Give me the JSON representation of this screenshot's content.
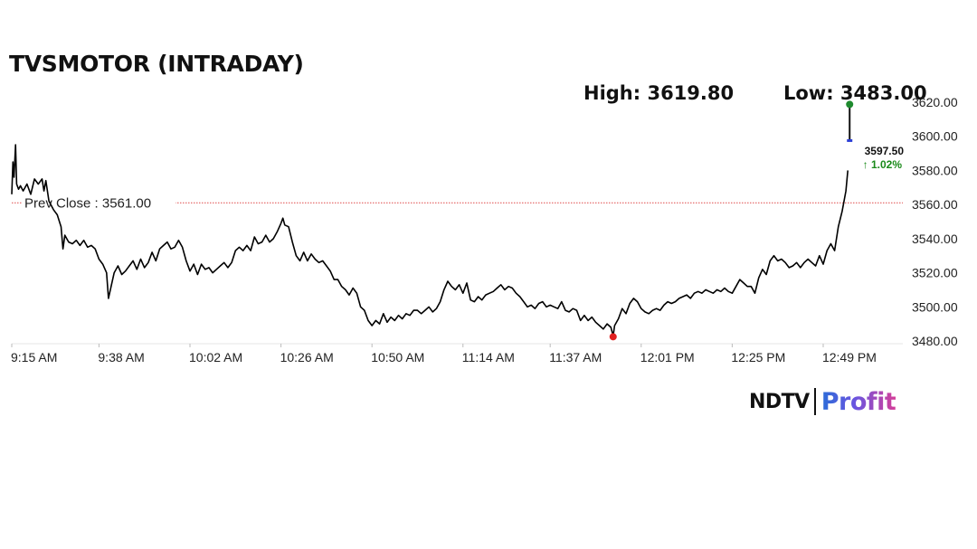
{
  "header": {
    "title": "TVSMOTOR (INTRADAY)",
    "high_text": "High: 3619.80",
    "low_text": "Low: 3483.00"
  },
  "brand": {
    "ndtv": "NDTV",
    "profit": "Profit"
  },
  "chart_data": {
    "type": "line",
    "title": "TVSMOTOR (INTRADAY)",
    "xlabel": "",
    "ylabel": "",
    "ylim": [
      3472,
      3622
    ],
    "y_ticks": [
      3480,
      3500,
      3520,
      3540,
      3560,
      3580,
      3600,
      3620
    ],
    "y_tick_labels": [
      "3480.00",
      "3500.00",
      "3520.00",
      "3540.00",
      "3560.00",
      "3580.00",
      "3600.00",
      "3620.00"
    ],
    "x_ticks": [
      "9:15 AM",
      "9:38 AM",
      "10:02 AM",
      "10:26 AM",
      "10:50 AM",
      "11:14 AM",
      "11:37 AM",
      "12:01 PM",
      "12:25 PM",
      "12:49 PM"
    ],
    "x_tick_minutes": [
      555,
      578,
      602,
      626,
      650,
      674,
      697,
      721,
      745,
      769
    ],
    "x_range_minutes": [
      555,
      790
    ],
    "prev_close": {
      "value": 3561.0,
      "label": "Prev Close : 3561.00",
      "color": "#e04848"
    },
    "high": {
      "value": 3619.8,
      "color": "#1e8a2e"
    },
    "low": {
      "value": 3483.0,
      "color": "#e02020"
    },
    "last": {
      "value": 3597.5,
      "label": "3597.50",
      "change_label": "↑ 1.02%",
      "change_color": "#1a8a1a",
      "candle_top": 3610,
      "candle_bottom": 3597.5,
      "candle_color": "#2c3fd6"
    },
    "series": [
      {
        "color": "#000000",
        "points": [
          [
            555.0,
            3566
          ],
          [
            555.3,
            3585
          ],
          [
            555.6,
            3576
          ],
          [
            556.0,
            3595
          ],
          [
            556.3,
            3572
          ],
          [
            556.8,
            3569
          ],
          [
            557.3,
            3571
          ],
          [
            558.0,
            3568
          ],
          [
            559.0,
            3572
          ],
          [
            560.0,
            3566
          ],
          [
            561.0,
            3575
          ],
          [
            562.0,
            3572
          ],
          [
            563.0,
            3575
          ],
          [
            563.5,
            3568
          ],
          [
            564.0,
            3574
          ],
          [
            564.8,
            3562
          ],
          [
            566.0,
            3557
          ],
          [
            567.0,
            3554
          ],
          [
            568.0,
            3547
          ],
          [
            568.5,
            3534
          ],
          [
            569.0,
            3542
          ],
          [
            570.0,
            3538
          ],
          [
            571.0,
            3537
          ],
          [
            572.0,
            3539
          ],
          [
            573.0,
            3536
          ],
          [
            574.0,
            3539
          ],
          [
            575.0,
            3535
          ],
          [
            576.0,
            3536
          ],
          [
            577.0,
            3534
          ],
          [
            578.0,
            3528
          ],
          [
            579.0,
            3525
          ],
          [
            580.0,
            3520
          ],
          [
            580.5,
            3505
          ],
          [
            581.0,
            3510
          ],
          [
            582.0,
            3520
          ],
          [
            583.0,
            3524
          ],
          [
            584.0,
            3519
          ],
          [
            585.0,
            3521
          ],
          [
            586.0,
            3524
          ],
          [
            587.0,
            3527
          ],
          [
            588.0,
            3522
          ],
          [
            589.0,
            3528
          ],
          [
            590.0,
            3523
          ],
          [
            591.0,
            3526
          ],
          [
            592.0,
            3532
          ],
          [
            593.0,
            3527
          ],
          [
            594.0,
            3534
          ],
          [
            595.0,
            3536
          ],
          [
            596.0,
            3538
          ],
          [
            597.0,
            3534
          ],
          [
            598.0,
            3535
          ],
          [
            599.0,
            3539
          ],
          [
            600.0,
            3535
          ],
          [
            601.0,
            3527
          ],
          [
            602.0,
            3521
          ],
          [
            603.0,
            3525
          ],
          [
            604.0,
            3519
          ],
          [
            605.0,
            3525
          ],
          [
            606.0,
            3522
          ],
          [
            607.0,
            3523
          ],
          [
            608.0,
            3520
          ],
          [
            609.0,
            3522
          ],
          [
            610.0,
            3524
          ],
          [
            611.0,
            3526
          ],
          [
            612.0,
            3523
          ],
          [
            613.0,
            3526
          ],
          [
            614.0,
            3533
          ],
          [
            615.0,
            3535
          ],
          [
            616.0,
            3533
          ],
          [
            617.0,
            3536
          ],
          [
            618.0,
            3533
          ],
          [
            619.0,
            3541
          ],
          [
            620.0,
            3537
          ],
          [
            621.0,
            3538
          ],
          [
            622.0,
            3542
          ],
          [
            623.0,
            3538
          ],
          [
            624.0,
            3540
          ],
          [
            625.0,
            3544
          ],
          [
            626.0,
            3549
          ],
          [
            626.5,
            3552
          ],
          [
            627.0,
            3548
          ],
          [
            628.0,
            3547
          ],
          [
            629.0,
            3538
          ],
          [
            630.0,
            3530
          ],
          [
            631.0,
            3527
          ],
          [
            632.0,
            3532
          ],
          [
            633.0,
            3527
          ],
          [
            634.0,
            3531
          ],
          [
            635.0,
            3528
          ],
          [
            636.0,
            3526
          ],
          [
            637.0,
            3527
          ],
          [
            638.0,
            3524
          ],
          [
            639.0,
            3521
          ],
          [
            640.0,
            3516
          ],
          [
            641.0,
            3516
          ],
          [
            642.0,
            3512
          ],
          [
            643.0,
            3510
          ],
          [
            644.0,
            3507
          ],
          [
            645.0,
            3511
          ],
          [
            646.0,
            3508
          ],
          [
            647.0,
            3500
          ],
          [
            648.0,
            3498
          ],
          [
            649.0,
            3492
          ],
          [
            650.0,
            3489
          ],
          [
            651.0,
            3492
          ],
          [
            652.0,
            3490
          ],
          [
            653.0,
            3496
          ],
          [
            654.0,
            3491
          ],
          [
            655.0,
            3494
          ],
          [
            656.0,
            3492
          ],
          [
            657.0,
            3495
          ],
          [
            658.0,
            3493
          ],
          [
            659.0,
            3496
          ],
          [
            660.0,
            3495
          ],
          [
            661.0,
            3498
          ],
          [
            662.0,
            3498
          ],
          [
            663.0,
            3496
          ],
          [
            664.0,
            3498
          ],
          [
            665.0,
            3500
          ],
          [
            666.0,
            3497
          ],
          [
            667.0,
            3499
          ],
          [
            668.0,
            3503
          ],
          [
            669.0,
            3510
          ],
          [
            670.0,
            3515
          ],
          [
            671.0,
            3512
          ],
          [
            672.0,
            3510
          ],
          [
            673.0,
            3513
          ],
          [
            674.0,
            3508
          ],
          [
            675.0,
            3514
          ],
          [
            676.0,
            3504
          ],
          [
            677.0,
            3503
          ],
          [
            678.0,
            3506
          ],
          [
            679.0,
            3504
          ],
          [
            680.0,
            3507
          ],
          [
            681.0,
            3508
          ],
          [
            682.0,
            3509
          ],
          [
            683.0,
            3511
          ],
          [
            684.0,
            3513
          ],
          [
            685.0,
            3510
          ],
          [
            686.0,
            3512
          ],
          [
            687.0,
            3511
          ],
          [
            688.0,
            3508
          ],
          [
            689.0,
            3506
          ],
          [
            690.0,
            3503
          ],
          [
            691.0,
            3500
          ],
          [
            692.0,
            3501
          ],
          [
            693.0,
            3499
          ],
          [
            694.0,
            3502
          ],
          [
            695.0,
            3503
          ],
          [
            696.0,
            3500
          ],
          [
            697.0,
            3501
          ],
          [
            698.0,
            3500
          ],
          [
            699.0,
            3499
          ],
          [
            700.0,
            3503
          ],
          [
            701.0,
            3498
          ],
          [
            702.0,
            3497
          ],
          [
            703.0,
            3499
          ],
          [
            704.0,
            3498
          ],
          [
            705.0,
            3492
          ],
          [
            706.0,
            3495
          ],
          [
            707.0,
            3492
          ],
          [
            708.0,
            3494
          ],
          [
            709.0,
            3491
          ],
          [
            710.0,
            3489
          ],
          [
            711.0,
            3487
          ],
          [
            712.0,
            3490
          ],
          [
            713.0,
            3488
          ],
          [
            713.6,
            3483
          ],
          [
            714.0,
            3489
          ],
          [
            715.0,
            3493
          ],
          [
            716.0,
            3499
          ],
          [
            717.0,
            3496
          ],
          [
            718.0,
            3502
          ],
          [
            719.0,
            3505
          ],
          [
            720.0,
            3503
          ],
          [
            721.0,
            3499
          ],
          [
            722.0,
            3497
          ],
          [
            723.0,
            3496
          ],
          [
            724.0,
            3498
          ],
          [
            725.0,
            3499
          ],
          [
            726.0,
            3498
          ],
          [
            727.0,
            3501
          ],
          [
            728.0,
            3503
          ],
          [
            729.0,
            3502
          ],
          [
            730.0,
            3503
          ],
          [
            731.0,
            3505
          ],
          [
            732.0,
            3506
          ],
          [
            733.0,
            3507
          ],
          [
            734.0,
            3505
          ],
          [
            735.0,
            3508
          ],
          [
            736.0,
            3509
          ],
          [
            737.0,
            3508
          ],
          [
            738.0,
            3510
          ],
          [
            739.0,
            3509
          ],
          [
            740.0,
            3508
          ],
          [
            741.0,
            3510
          ],
          [
            742.0,
            3509
          ],
          [
            743.0,
            3511
          ],
          [
            744.0,
            3509
          ],
          [
            745.0,
            3508
          ],
          [
            746.0,
            3512
          ],
          [
            747.0,
            3516
          ],
          [
            748.0,
            3514
          ],
          [
            749.0,
            3512
          ],
          [
            750.0,
            3512
          ],
          [
            751.0,
            3508
          ],
          [
            752.0,
            3517
          ],
          [
            753.0,
            3522
          ],
          [
            754.0,
            3519
          ],
          [
            755.0,
            3527
          ],
          [
            756.0,
            3530
          ],
          [
            757.0,
            3527
          ],
          [
            758.0,
            3528
          ],
          [
            759.0,
            3526
          ],
          [
            760.0,
            3523
          ],
          [
            761.0,
            3524
          ],
          [
            762.0,
            3526
          ],
          [
            763.0,
            3523
          ],
          [
            764.0,
            3526
          ],
          [
            765.0,
            3528
          ],
          [
            766.0,
            3526
          ],
          [
            767.0,
            3524
          ],
          [
            768.0,
            3530
          ],
          [
            769.0,
            3525
          ],
          [
            770.0,
            3533
          ],
          [
            771.0,
            3537
          ],
          [
            772.0,
            3533
          ],
          [
            773.0,
            3547
          ],
          [
            774.0,
            3556
          ],
          [
            775.0,
            3568
          ],
          [
            775.5,
            3580
          ]
        ]
      }
    ]
  }
}
